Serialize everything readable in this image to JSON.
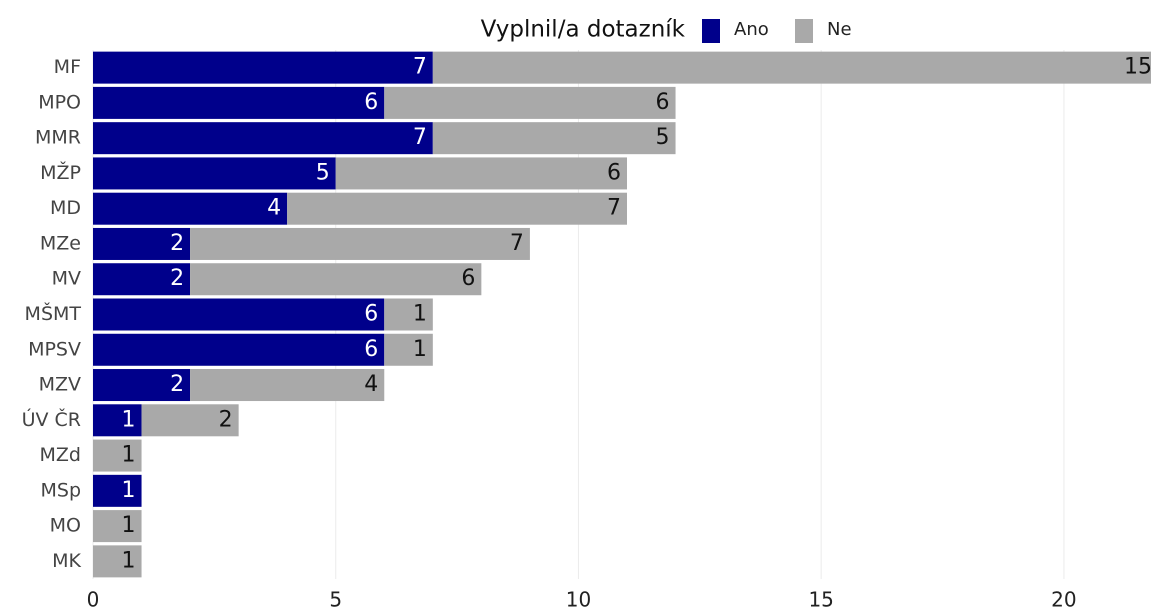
{
  "chart_data": {
    "type": "stacked-bar-horizontal",
    "legend_title": "Vyplnil/a dotazník",
    "categories": [
      "MF",
      "MPO",
      "MMR",
      "MŽP",
      "MD",
      "MZe",
      "MV",
      "MŠMT",
      "MPSV",
      "MZV",
      "ÚV ČR",
      "MZd",
      "MSp",
      "MO",
      "MK"
    ],
    "series": [
      {
        "name": "Ano",
        "color": "#00008b",
        "values": [
          7,
          6,
          7,
          5,
          4,
          2,
          2,
          6,
          6,
          2,
          1,
          null,
          1,
          null,
          null
        ]
      },
      {
        "name": "Ne",
        "color": "#a9a9a9",
        "values": [
          15,
          6,
          5,
          6,
          7,
          7,
          6,
          1,
          1,
          4,
          2,
          1,
          null,
          1,
          1
        ]
      }
    ],
    "xlim": [
      0,
      22
    ],
    "xticks": [
      0,
      5,
      10,
      15,
      20
    ],
    "grid": true,
    "legend_position": "top"
  }
}
